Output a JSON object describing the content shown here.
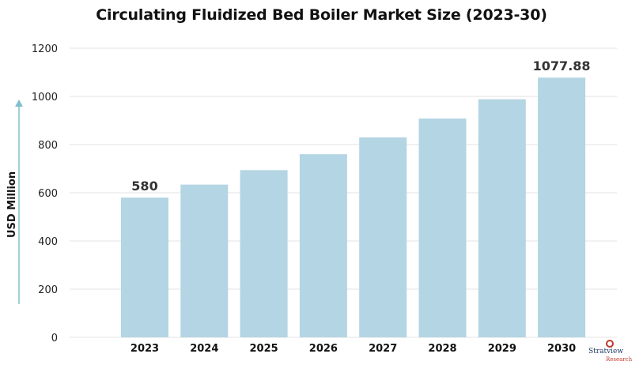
{
  "chart_data": {
    "type": "bar",
    "title": "Circulating Fluidized Bed Boiler Market Size (2023-30)",
    "xlabel": "",
    "ylabel": "USD Million",
    "categories": [
      "2023",
      "2024",
      "2025",
      "2026",
      "2027",
      "2028",
      "2029",
      "2030"
    ],
    "values": [
      580,
      634,
      694,
      760,
      830,
      908,
      988,
      1077.88
    ],
    "data_labels": {
      "0": "580",
      "7": "1077.88"
    },
    "ylim": [
      0,
      1200
    ],
    "yticks": [
      0,
      200,
      400,
      600,
      800,
      1000,
      1200
    ],
    "grid": true,
    "legend": "none",
    "bar_color": "#b4d5e3",
    "grid_color": "#e3e3e3",
    "arrow_color": "#7fc0cf"
  },
  "branding": {
    "logo_name": "Stratview",
    "logo_sub": "Research"
  }
}
